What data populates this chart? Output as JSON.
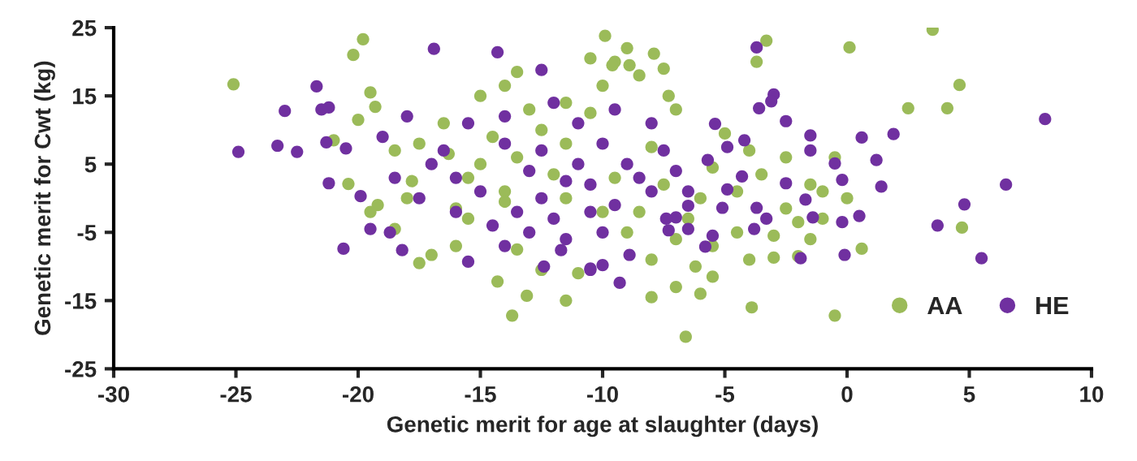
{
  "chart_data": {
    "type": "scatter",
    "xlabel": "Genetic merit for age at slaughter (days)",
    "ylabel": "Genetic merit for Cwt (kg)",
    "xlim": [
      -30,
      10
    ],
    "xticks": [
      -30,
      -25,
      -20,
      -15,
      -10,
      -5,
      0,
      5,
      10
    ],
    "ylim": [
      -25,
      25
    ],
    "yticks": [
      -25,
      -15,
      -5,
      5,
      15,
      25
    ],
    "grid": false,
    "legend": "bottom right",
    "marker": "circle",
    "series": [
      {
        "name": "AA",
        "color": "#9bbb59",
        "x": [
          -25.1,
          -19.8,
          -20.2,
          -19.5,
          -19.3,
          -20.0,
          -21.0,
          -20.4,
          -19.2,
          -18.5,
          -17.5,
          -17.0,
          -16.0,
          -17.8,
          -16.3,
          -17.5,
          -16.5,
          -15.5,
          -15.0,
          -14.0,
          -13.5,
          -12.5,
          -13.0,
          -11.5,
          -12.0,
          -11.5,
          -10.5,
          -10.0,
          -9.5,
          -9.0,
          -8.5,
          -7.5,
          -7.0,
          -10.5,
          -14.0,
          -13.5,
          -12.5,
          -13.7,
          -14.3,
          -13.1,
          -11.5,
          -11.0,
          -6.6,
          -8.0,
          -7.0,
          -6.0,
          -6.2,
          -5.5,
          -4.0,
          -3.9,
          -0.5,
          0.6,
          -2.0,
          -3.0,
          3.5,
          0.1,
          4.6,
          4.1,
          2.5,
          4.7,
          -3.3,
          -3.7,
          -9.9,
          -9.6,
          -7.9,
          -8.9,
          -7.3,
          -2.5,
          -1.5,
          -1.0,
          -0.5,
          0.0,
          -1.0,
          -2.5,
          -3.5,
          -4.5,
          -4.0,
          -5.0,
          -5.5,
          -6.0,
          -6.5,
          -7.5,
          -8.0,
          -8.5,
          -9.0,
          -9.5,
          -10.0,
          -11.5,
          -15.5,
          -16.0,
          -14.5,
          -15.0,
          -14.0,
          -13.5,
          -18.5,
          -19.5,
          -18.0,
          -3.0,
          -1.5,
          -2.0,
          -4.5,
          -7.0,
          -5.5,
          -8.0
        ],
        "values": [
          16.7,
          23.3,
          21.0,
          15.5,
          13.4,
          11.5,
          8.5,
          2.1,
          -1.0,
          -4.5,
          -9.5,
          -8.3,
          -7.0,
          2.5,
          6.5,
          8.0,
          11.0,
          3.0,
          5.0,
          1.0,
          6.0,
          10.0,
          13.0,
          14.0,
          3.5,
          8.0,
          12.5,
          16.5,
          20.0,
          22.0,
          18.0,
          19.0,
          13.0,
          20.5,
          -0.5,
          -7.5,
          -10.5,
          -17.2,
          -12.2,
          -14.3,
          -15.0,
          -11.0,
          -20.3,
          -14.5,
          -13.0,
          -14.0,
          -10.0,
          -7.0,
          -9.0,
          -16.0,
          -17.2,
          -7.4,
          -8.5,
          -8.7,
          24.7,
          22.1,
          16.6,
          13.2,
          13.2,
          -4.3,
          23.1,
          20.0,
          23.8,
          19.5,
          21.2,
          19.5,
          15.0,
          6.0,
          2.0,
          1.0,
          6.0,
          0.0,
          -3.0,
          -1.5,
          3.5,
          1.0,
          7.0,
          9.5,
          4.5,
          0.0,
          -3.0,
          2.0,
          7.5,
          -2.0,
          -5.0,
          3.0,
          -2.0,
          0.0,
          -3.0,
          -1.5,
          9.0,
          15.0,
          16.5,
          18.5,
          7.0,
          -2.0,
          0.0,
          -5.5,
          -6.0,
          -3.5,
          -5.0,
          -6.0,
          -11.5,
          -9.0
        ]
      },
      {
        "name": "HE",
        "color": "#7030a0",
        "x": [
          -24.9,
          -23.0,
          -23.3,
          -22.5,
          -21.7,
          -21.5,
          -21.2,
          -21.3,
          -21.2,
          -20.6,
          -20.5,
          -19.9,
          -19.5,
          -18.7,
          -18.2,
          -16.9,
          -14.3,
          -12.5,
          -15.5,
          -12.4,
          -10.5,
          -11.7,
          -3.7,
          8.1,
          6.5,
          5.5,
          4.8,
          3.7,
          1.9,
          1.2,
          0.6,
          1.4,
          0.5,
          -0.1,
          -0.2,
          -0.2,
          -0.5,
          -1.5,
          -1.5,
          -1.9,
          -1.4,
          -1.7,
          -2.5,
          -3.0,
          -3.1,
          -3.6,
          -2.5,
          -4.2,
          -4.9,
          -5.4,
          -5.7,
          -4.3,
          -4.9,
          -3.7,
          -3.3,
          -3.8,
          -5.1,
          -5.5,
          -5.8,
          -6.5,
          -6.5,
          -7.0,
          -7.3,
          -7.4,
          -8.9,
          -9.3,
          -10.0,
          -10.5,
          -14.0,
          -13.0,
          -12.5,
          -12.0,
          -11.0,
          -10.5,
          -10.0,
          -9.5,
          -9.0,
          -8.5,
          -8.0,
          -13.5,
          -14.5,
          -15.0,
          -16.0,
          -16.5,
          -17.0,
          -15.5,
          -14.0,
          -12.0,
          -11.0,
          -9.5,
          -8.0,
          -7.5,
          -7.0,
          -6.5,
          -10.0,
          -11.5,
          -13.0,
          -14.0,
          -16.0,
          -17.5,
          -18.5,
          -19.0,
          -18.0,
          -12.5,
          -10.5,
          -11.5
        ],
        "values": [
          6.8,
          12.8,
          7.7,
          6.8,
          16.4,
          13.0,
          13.3,
          8.2,
          2.2,
          -7.4,
          7.3,
          0.3,
          -4.5,
          -5.0,
          -7.6,
          21.9,
          21.4,
          18.8,
          -9.3,
          -10.0,
          -10.5,
          -7.6,
          22.1,
          11.6,
          2.0,
          -8.8,
          -0.9,
          -4.0,
          9.4,
          5.6,
          8.9,
          1.7,
          -2.6,
          -8.3,
          -3.5,
          2.7,
          5.1,
          9.2,
          7.0,
          -8.8,
          -2.8,
          -0.2,
          2.2,
          15.2,
          14.2,
          13.2,
          11.3,
          8.5,
          7.5,
          10.9,
          5.6,
          3.2,
          1.3,
          -1.4,
          -3.0,
          -4.5,
          -1.4,
          -5.5,
          -7.1,
          -4.5,
          -1.1,
          -2.8,
          -4.7,
          -3.0,
          -8.3,
          -12.4,
          -9.8,
          -10.3,
          8.0,
          4.0,
          0.0,
          -3.0,
          5.0,
          2.0,
          8.0,
          -1.0,
          5.0,
          3.0,
          1.0,
          -2.0,
          -4.0,
          1.0,
          3.0,
          7.0,
          5.0,
          11.0,
          12.0,
          14.0,
          11.0,
          13.0,
          11.0,
          7.0,
          4.0,
          1.0,
          -5.0,
          -6.0,
          -5.0,
          -7.0,
          -2.0,
          0.0,
          3.0,
          9.0,
          12.0,
          7.0,
          -2.0,
          2.5
        ]
      }
    ]
  }
}
